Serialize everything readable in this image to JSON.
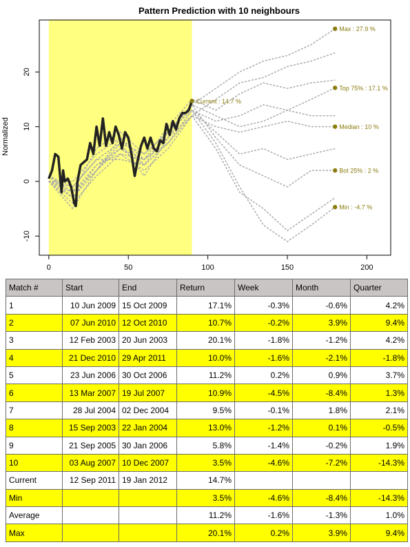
{
  "chart_data": {
    "type": "line",
    "title": "Pattern Prediction with 10 neighbours",
    "xlabel": "",
    "ylabel": "Normalized",
    "xlim": [
      -6,
      215
    ],
    "ylim": [
      -13.5,
      29.5
    ],
    "x_ticks": [
      0,
      50,
      100,
      150,
      200
    ],
    "y_ticks": [
      -10,
      0,
      10,
      20
    ],
    "pattern_window": [
      0,
      90
    ],
    "current_series": {
      "name": "Current",
      "x": [
        0,
        2,
        4,
        6,
        8,
        9,
        10,
        12,
        14,
        16,
        17,
        18,
        20,
        22,
        24,
        26,
        28,
        30,
        32,
        34,
        36,
        38,
        40,
        42,
        44,
        46,
        48,
        50,
        52,
        54,
        56,
        58,
        60,
        62,
        64,
        66,
        68,
        70,
        72,
        74,
        76,
        78,
        80,
        82,
        84,
        86,
        88,
        90
      ],
      "y": [
        0.5,
        2,
        5,
        4.5,
        -2,
        2,
        0,
        0.5,
        -1,
        -4,
        -4.5,
        0,
        3,
        3.5,
        4,
        7,
        5,
        10,
        6.5,
        11.5,
        6.5,
        9,
        7,
        10,
        8.5,
        6,
        9,
        8,
        5,
        1,
        4,
        6.5,
        8,
        6,
        8,
        6,
        5.5,
        7.5,
        7,
        10.5,
        8.5,
        11,
        9.5,
        11.5,
        12.5,
        12.5,
        13,
        14.7
      ]
    },
    "neighbour_series": [
      {
        "x": [
          0,
          15,
          30,
          45,
          60,
          75,
          90,
          105,
          120,
          135,
          150,
          165,
          180
        ],
        "y": [
          1,
          -1,
          4,
          7,
          5,
          9,
          14,
          17,
          20,
          22,
          23,
          25,
          27.9
        ]
      },
      {
        "x": [
          0,
          15,
          30,
          45,
          60,
          75,
          90,
          105,
          120,
          135,
          150,
          165,
          180
        ],
        "y": [
          0,
          -2,
          3,
          5,
          4,
          8,
          12,
          15,
          18,
          19,
          21,
          22,
          23.5
        ]
      },
      {
        "x": [
          0,
          15,
          30,
          45,
          60,
          75,
          90,
          105,
          120,
          135,
          150,
          165,
          180
        ],
        "y": [
          0,
          0,
          5,
          8,
          4,
          10,
          15,
          13,
          16,
          18,
          17,
          18,
          18.5
        ]
      },
      {
        "x": [
          0,
          15,
          30,
          45,
          60,
          75,
          90,
          105,
          120,
          135,
          150,
          165,
          180
        ],
        "y": [
          0,
          -3,
          2,
          6,
          3,
          7,
          13,
          11,
          12,
          14,
          13,
          15,
          17.1
        ]
      },
      {
        "x": [
          0,
          15,
          30,
          45,
          60,
          75,
          90,
          105,
          120,
          135,
          150,
          165,
          180
        ],
        "y": [
          1,
          -2,
          6,
          9,
          5,
          9,
          14,
          12,
          10,
          11,
          13,
          12,
          12
        ]
      },
      {
        "x": [
          0,
          15,
          30,
          45,
          60,
          75,
          90,
          105,
          120,
          135,
          150,
          165,
          180
        ],
        "y": [
          0,
          -4,
          1,
          5,
          2,
          6,
          12,
          10,
          9,
          10,
          11,
          10,
          10
        ]
      },
      {
        "x": [
          0,
          15,
          30,
          45,
          60,
          75,
          90,
          105,
          120,
          135,
          150,
          165,
          180
        ],
        "y": [
          0,
          -1,
          4,
          4,
          3,
          7,
          13,
          9,
          5,
          6,
          4,
          5,
          6
        ]
      },
      {
        "x": [
          0,
          15,
          30,
          45,
          60,
          75,
          90,
          105,
          120,
          135,
          150,
          165,
          180
        ],
        "y": [
          0,
          -5,
          2,
          7,
          1,
          8,
          14,
          8,
          3,
          1,
          -1,
          2,
          2
        ]
      },
      {
        "x": [
          0,
          15,
          30,
          45,
          60,
          75,
          90,
          105,
          120,
          135,
          150,
          165,
          180
        ],
        "y": [
          1,
          -3,
          3,
          6,
          4,
          7,
          12,
          6,
          -2,
          -5,
          -9,
          -6,
          -3
        ]
      },
      {
        "x": [
          0,
          15,
          30,
          45,
          60,
          75,
          90,
          105,
          120,
          135,
          150,
          165,
          180
        ],
        "y": [
          0,
          -2,
          2,
          8,
          3,
          9,
          13,
          7,
          -1,
          -8,
          -11,
          -8,
          -4.7
        ]
      }
    ],
    "annotations": [
      {
        "x": 90,
        "y": 14.7,
        "label": "Current : 14.7 %"
      },
      {
        "x": 180,
        "y": 27.9,
        "label": "Max : 27.9 %"
      },
      {
        "x": 180,
        "y": 17.1,
        "label": "Top 75% : 17.1 %"
      },
      {
        "x": 180,
        "y": 10,
        "label": "Median : 10 %"
      },
      {
        "x": 180,
        "y": 2,
        "label": "Bot 25% : 2 %"
      },
      {
        "x": 180,
        "y": -4.7,
        "label": "Min : -4.7 %"
      }
    ],
    "grid": false,
    "legend": "none",
    "colors": {
      "pattern_band": "#ffff80",
      "current_line": "#222222",
      "neighbour_line": "#aaaaaa",
      "annotation": "#8b7c10"
    }
  },
  "table": {
    "headers": [
      "Match #",
      "Start",
      "End",
      "Return",
      "Week",
      "Month",
      "Quarter"
    ],
    "rows": [
      {
        "match": "1",
        "start": "10 Jun 2009",
        "end": "15 Oct 2009",
        "return": "17.1%",
        "week": "-0.3%",
        "month": "-0.6%",
        "quarter": "4.2%",
        "hl": false
      },
      {
        "match": "2",
        "start": "07 Jun 2010",
        "end": "12 Oct 2010",
        "return": "10.7%",
        "week": "-0.2%",
        "month": "3.9%",
        "quarter": "9.4%",
        "hl": true
      },
      {
        "match": "3",
        "start": "12 Feb 2003",
        "end": "20 Jun 2003",
        "return": "20.1%",
        "week": "-1.8%",
        "month": "-1.2%",
        "quarter": "4.2%",
        "hl": false
      },
      {
        "match": "4",
        "start": "21 Dec 2010",
        "end": "29 Apr 2011",
        "return": "10.0%",
        "week": "-1.6%",
        "month": "-2.1%",
        "quarter": "-1.8%",
        "hl": true
      },
      {
        "match": "5",
        "start": "23 Jun 2006",
        "end": "30 Oct 2006",
        "return": "11.2%",
        "week": "0.2%",
        "month": "0.9%",
        "quarter": "3.7%",
        "hl": false
      },
      {
        "match": "6",
        "start": "13 Mar 2007",
        "end": "19 Jul 2007",
        "return": "10.9%",
        "week": "-4.5%",
        "month": "-8.4%",
        "quarter": "1.3%",
        "hl": true
      },
      {
        "match": "7",
        "start": "28 Jul 2004",
        "end": "02 Dec 2004",
        "return": "9.5%",
        "week": "-0.1%",
        "month": "1.8%",
        "quarter": "2.1%",
        "hl": false
      },
      {
        "match": "8",
        "start": "15 Sep 2003",
        "end": "22 Jan 2004",
        "return": "13.0%",
        "week": "-1.2%",
        "month": "0.1%",
        "quarter": "-0.5%",
        "hl": true
      },
      {
        "match": "9",
        "start": "21 Sep 2005",
        "end": "30 Jan 2006",
        "return": "5.8%",
        "week": "-1.4%",
        "month": "-0.2%",
        "quarter": "1.9%",
        "hl": false
      },
      {
        "match": "10",
        "start": "03 Aug 2007",
        "end": "10 Dec 2007",
        "return": "3.5%",
        "week": "-4.6%",
        "month": "-7.2%",
        "quarter": "-14.3%",
        "hl": true
      },
      {
        "match": "Current",
        "start": "12 Sep 2011",
        "end": "19 Jan 2012",
        "return": "14.7%",
        "week": "",
        "month": "",
        "quarter": "",
        "hl": false
      },
      {
        "match": "Min",
        "start": "",
        "end": "",
        "return": "3.5%",
        "week": "-4.6%",
        "month": "-8.4%",
        "quarter": "-14.3%",
        "hl": true
      },
      {
        "match": "Average",
        "start": "",
        "end": "",
        "return": "11.2%",
        "week": "-1.6%",
        "month": "-1.3%",
        "quarter": "1.0%",
        "hl": false
      },
      {
        "match": "Max",
        "start": "",
        "end": "",
        "return": "20.1%",
        "week": "0.2%",
        "month": "3.9%",
        "quarter": "9.4%",
        "hl": true
      }
    ]
  }
}
